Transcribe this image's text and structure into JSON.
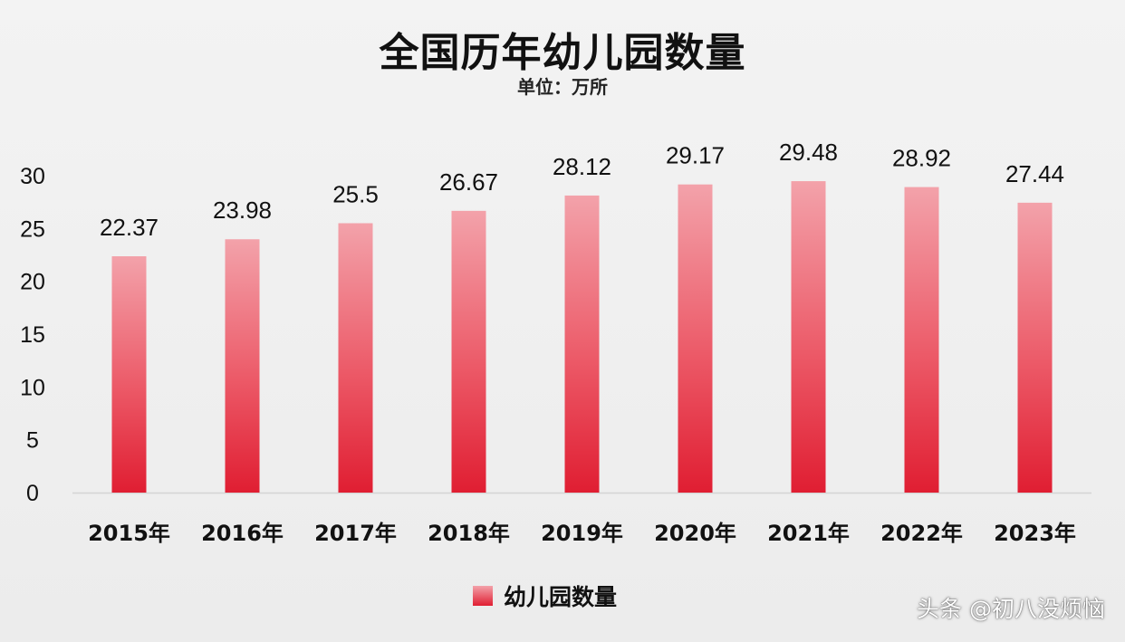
{
  "chart_data": {
    "type": "bar",
    "title": "全国历年幼儿园数量",
    "subtitle": "单位：万所",
    "categories": [
      "2015年",
      "2016年",
      "2017年",
      "2018年",
      "2019年",
      "2020年",
      "2021年",
      "2022年",
      "2023年"
    ],
    "series": [
      {
        "name": "幼儿园数量",
        "values": [
          22.37,
          23.98,
          25.5,
          26.67,
          28.12,
          29.17,
          29.48,
          28.92,
          27.44
        ],
        "color": "#e8283c"
      }
    ],
    "data_labels": [
      "22.37",
      "23.98",
      "25.5",
      "26.67",
      "28.12",
      "29.17",
      "29.48",
      "28.92",
      "27.44"
    ],
    "y_ticks": [
      "0",
      "5",
      "10",
      "15",
      "20",
      "25",
      "30"
    ],
    "ylim": [
      0,
      30
    ],
    "grid": false,
    "legend_position": "bottom-center"
  },
  "watermark": "头条 @初八没烦恼"
}
